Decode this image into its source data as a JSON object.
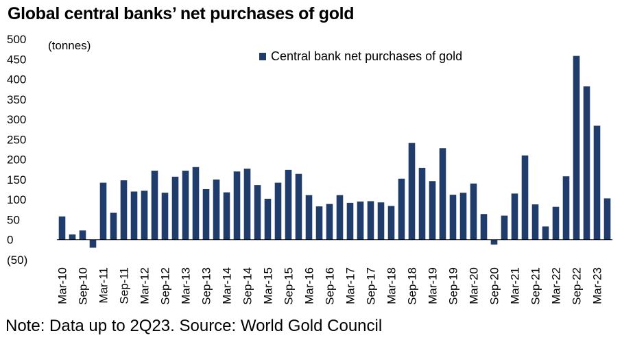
{
  "title": "Global central banks’ net purchases of gold",
  "note": "Note: Data up to 2Q23. Source: World Gold Council",
  "colors": {
    "bar": "#1f3c6b",
    "text": "#000000"
  },
  "chart_data": {
    "type": "bar",
    "title": "Global central banks’ net purchases of gold",
    "ylabel": "(tonnes)",
    "ylim": [
      -50,
      500
    ],
    "yticks": [
      -50,
      0,
      50,
      100,
      150,
      200,
      250,
      300,
      350,
      400,
      450,
      500
    ],
    "ytick_labels": [
      "(50)",
      "0",
      "50",
      "100",
      "150",
      "200",
      "250",
      "300",
      "350",
      "400",
      "450",
      "500"
    ],
    "legend": {
      "placement": "top-center",
      "label": "Central bank net purchases of gold"
    },
    "x_tick_labels": [
      "Mar-10",
      "Sep-10",
      "Mar-11",
      "Sep-11",
      "Mar-12",
      "Sep-12",
      "Mar-13",
      "Sep-13",
      "Mar-14",
      "Sep-14",
      "Mar-15",
      "Sep-15",
      "Mar-16",
      "Sep-16",
      "Mar-17",
      "Sep-17",
      "Mar-18",
      "Sep-18",
      "Mar-19",
      "Sep-19",
      "Mar-20",
      "Sep-20",
      "Mar-21",
      "Sep-21",
      "Mar-22",
      "Sep-22",
      "Mar-23"
    ],
    "categories": [
      "1Q10",
      "2Q10",
      "3Q10",
      "4Q10",
      "1Q11",
      "2Q11",
      "3Q11",
      "4Q11",
      "1Q12",
      "2Q12",
      "3Q12",
      "4Q12",
      "1Q13",
      "2Q13",
      "3Q13",
      "4Q13",
      "1Q14",
      "2Q14",
      "3Q14",
      "4Q14",
      "1Q15",
      "2Q15",
      "3Q15",
      "4Q15",
      "1Q16",
      "2Q16",
      "3Q16",
      "4Q16",
      "1Q17",
      "2Q17",
      "3Q17",
      "4Q17",
      "1Q18",
      "2Q18",
      "3Q18",
      "4Q18",
      "1Q19",
      "2Q19",
      "3Q19",
      "4Q19",
      "1Q20",
      "2Q20",
      "3Q20",
      "4Q20",
      "1Q21",
      "2Q21",
      "3Q21",
      "4Q21",
      "1Q22",
      "2Q22",
      "3Q22",
      "4Q22",
      "1Q23",
      "2Q23"
    ],
    "series": [
      {
        "name": "Central bank net purchases of gold",
        "values": [
          58,
          13,
          23,
          -20,
          142,
          67,
          148,
          120,
          122,
          172,
          117,
          157,
          172,
          181,
          126,
          150,
          118,
          170,
          177,
          136,
          102,
          142,
          174,
          164,
          111,
          83,
          89,
          111,
          92,
          95,
          96,
          93,
          84,
          152,
          241,
          179,
          146,
          228,
          112,
          117,
          140,
          64,
          -12,
          60,
          115,
          210,
          88,
          33,
          82,
          158,
          458,
          382,
          284,
          103
        ]
      }
    ],
    "grid": false
  }
}
